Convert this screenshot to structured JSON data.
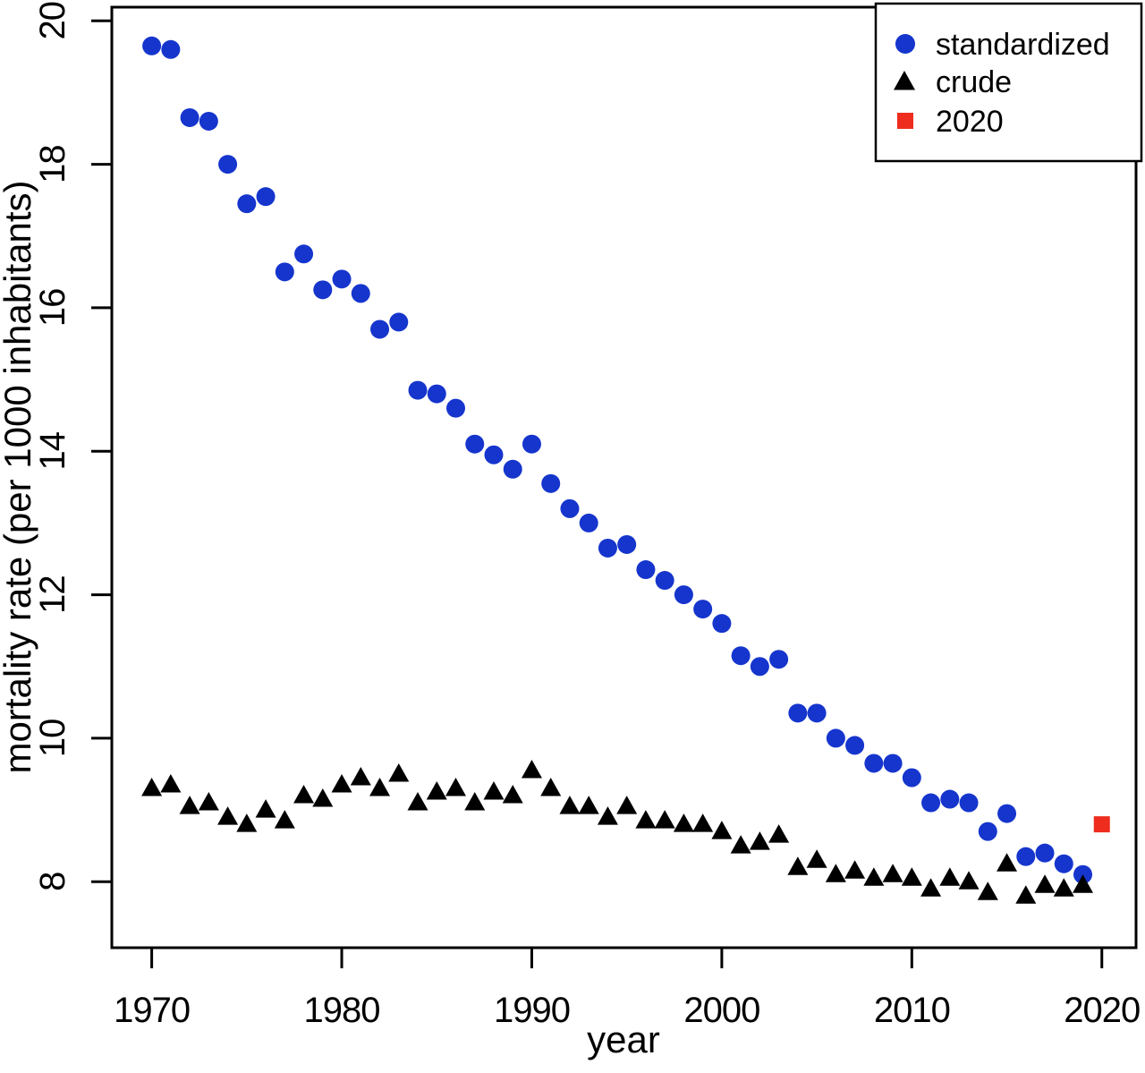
{
  "chart_data": {
    "type": "scatter",
    "title": "",
    "xlabel": "year",
    "ylabel": "mortality rate (per 1000 inhabitants)",
    "xlim": [
      1967.9,
      2021.8
    ],
    "ylim": [
      7.08,
      20.19
    ],
    "x_ticks": [
      1970,
      1980,
      1990,
      2000,
      2010,
      2020
    ],
    "y_ticks": [
      8,
      10,
      12,
      14,
      16,
      18,
      20
    ],
    "grid": false,
    "legend_position": "top-right",
    "x": [
      1970,
      1971,
      1972,
      1973,
      1974,
      1975,
      1976,
      1977,
      1978,
      1979,
      1980,
      1981,
      1982,
      1983,
      1984,
      1985,
      1986,
      1987,
      1988,
      1989,
      1990,
      1991,
      1992,
      1993,
      1994,
      1995,
      1996,
      1997,
      1998,
      1999,
      2000,
      2001,
      2002,
      2003,
      2004,
      2005,
      2006,
      2007,
      2008,
      2009,
      2010,
      2011,
      2012,
      2013,
      2014,
      2015,
      2016,
      2017,
      2018,
      2019
    ],
    "series": [
      {
        "name": "standardized",
        "marker": "circle",
        "color": "#1535cd",
        "values": [
          19.65,
          19.6,
          18.65,
          18.6,
          18.0,
          17.45,
          17.55,
          16.5,
          16.75,
          16.25,
          16.4,
          16.2,
          15.7,
          15.8,
          14.85,
          14.8,
          14.6,
          14.1,
          13.95,
          13.75,
          14.1,
          13.55,
          13.2,
          13.0,
          12.65,
          12.7,
          12.35,
          12.2,
          12.0,
          11.8,
          11.6,
          11.15,
          11.0,
          11.1,
          10.35,
          10.35,
          10.0,
          9.9,
          9.65,
          9.65,
          9.45,
          9.1,
          9.15,
          9.1,
          8.7,
          8.95,
          8.35,
          8.4,
          8.25,
          8.1
        ]
      },
      {
        "name": "crude",
        "marker": "triangle",
        "color": "#000000",
        "values": [
          9.3,
          9.35,
          9.05,
          9.1,
          8.9,
          8.8,
          9.0,
          8.85,
          9.2,
          9.15,
          9.35,
          9.45,
          9.3,
          9.5,
          9.1,
          9.25,
          9.3,
          9.1,
          9.25,
          9.2,
          9.55,
          9.3,
          9.05,
          9.05,
          8.9,
          9.05,
          8.85,
          8.85,
          8.8,
          8.8,
          8.7,
          8.5,
          8.55,
          8.65,
          8.2,
          8.3,
          8.1,
          8.15,
          8.05,
          8.1,
          8.05,
          7.9,
          8.05,
          8.0,
          7.85,
          8.25,
          7.8,
          7.95,
          7.9,
          7.95
        ]
      },
      {
        "name": "2020",
        "marker": "square",
        "color": "#ee2d1e",
        "x": [
          2020
        ],
        "values": [
          8.8
        ]
      }
    ]
  }
}
